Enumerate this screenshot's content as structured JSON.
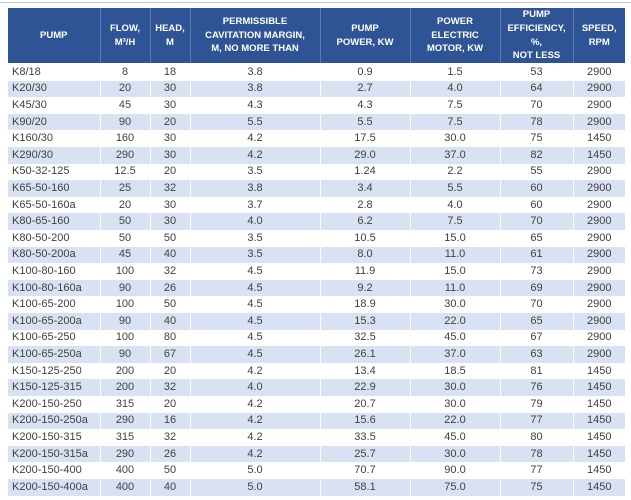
{
  "style": {
    "header_bg": "#2F5496",
    "header_text": "#FFFFFF",
    "stripe": "#D9E2F3",
    "body_text": "#404040",
    "top_rule": "#C9C9C9"
  },
  "chart_data": {
    "type": "table",
    "title": "Pump specifications table",
    "columns": [
      {
        "key": "pump",
        "label": "PUMP"
      },
      {
        "key": "flow",
        "label": "FLOW,\nM³/H"
      },
      {
        "key": "head",
        "label": "HEAD,\nM"
      },
      {
        "key": "cavitation",
        "label": "PERMISSIBLE\nCAVITATION MARGIN,\nM, NO MORE THAN"
      },
      {
        "key": "power",
        "label": "PUMP\nPOWER, KW"
      },
      {
        "key": "motor",
        "label": "POWER\nELECTRIC\nMOTOR, KW"
      },
      {
        "key": "efficiency",
        "label": "PUMP\nEFFICIENCY, %,\nNOT LESS"
      },
      {
        "key": "speed",
        "label": "SPEED,\nRPM"
      }
    ],
    "rows": [
      [
        "K8/18",
        "8",
        "18",
        "3.8",
        "0.9",
        "1.5",
        "53",
        "2900"
      ],
      [
        "K20/30",
        "20",
        "30",
        "3.8",
        "2.7",
        "4.0",
        "64",
        "2900"
      ],
      [
        "K45/30",
        "45",
        "30",
        "4.3",
        "4.3",
        "7.5",
        "70",
        "2900"
      ],
      [
        "K90/20",
        "90",
        "20",
        "5.5",
        "5.5",
        "7.5",
        "78",
        "2900"
      ],
      [
        "K160/30",
        "160",
        "30",
        "4.2",
        "17.5",
        "30.0",
        "75",
        "1450"
      ],
      [
        "K290/30",
        "290",
        "30",
        "4.2",
        "29.0",
        "37.0",
        "82",
        "1450"
      ],
      [
        "K50-32-125",
        "12.5",
        "20",
        "3.5",
        "1.24",
        "2.2",
        "55",
        "2900"
      ],
      [
        "K65-50-160",
        "25",
        "32",
        "3.8",
        "3.4",
        "5.5",
        "60",
        "2900"
      ],
      [
        "K65-50-160a",
        "20",
        "30",
        "3.7",
        "2.8",
        "4.0",
        "60",
        "2900"
      ],
      [
        "K80-65-160",
        "50",
        "30",
        "4.0",
        "6.2",
        "7.5",
        "70",
        "2900"
      ],
      [
        "K80-50-200",
        "50",
        "50",
        "3.5",
        "10.5",
        "15.0",
        "65",
        "2900"
      ],
      [
        "K80-50-200a",
        "45",
        "40",
        "3.5",
        "8.0",
        "11.0",
        "61",
        "2900"
      ],
      [
        "K100-80-160",
        "100",
        "32",
        "4.5",
        "11.9",
        "15.0",
        "73",
        "2900"
      ],
      [
        "K100-80-160a",
        "90",
        "26",
        "4.5",
        "9.2",
        "11.0",
        "69",
        "2900"
      ],
      [
        "K100-65-200",
        "100",
        "50",
        "4.5",
        "18.9",
        "30.0",
        "70",
        "2900"
      ],
      [
        "K100-65-200a",
        "90",
        "40",
        "4.5",
        "15.3",
        "22.0",
        "65",
        "2900"
      ],
      [
        "K100-65-250",
        "100",
        "80",
        "4.5",
        "32.5",
        "45.0",
        "67",
        "2900"
      ],
      [
        "K100-65-250a",
        "90",
        "67",
        "4.5",
        "26.1",
        "37.0",
        "63",
        "2900"
      ],
      [
        "K150-125-250",
        "200",
        "20",
        "4.2",
        "13.4",
        "18.5",
        "81",
        "1450"
      ],
      [
        "K150-125-315",
        "200",
        "32",
        "4.0",
        "22.9",
        "30.0",
        "76",
        "1450"
      ],
      [
        "K200-150-250",
        "315",
        "20",
        "4.2",
        "20.7",
        "30.0",
        "79",
        "1450"
      ],
      [
        "K200-150-250a",
        "290",
        "16",
        "4.2",
        "15.6",
        "22.0",
        "77",
        "1450"
      ],
      [
        "K200-150-315",
        "315",
        "32",
        "4.2",
        "33.5",
        "45.0",
        "80",
        "1450"
      ],
      [
        "K200-150-315a",
        "290",
        "26",
        "4.2",
        "25.7",
        "30.0",
        "78",
        "1450"
      ],
      [
        "K200-150-400",
        "400",
        "50",
        "5.0",
        "70.7",
        "90.0",
        "77",
        "1450"
      ],
      [
        "K200-150-400a",
        "400",
        "40",
        "5.0",
        "58.1",
        "75.0",
        "75",
        "1450"
      ]
    ]
  }
}
